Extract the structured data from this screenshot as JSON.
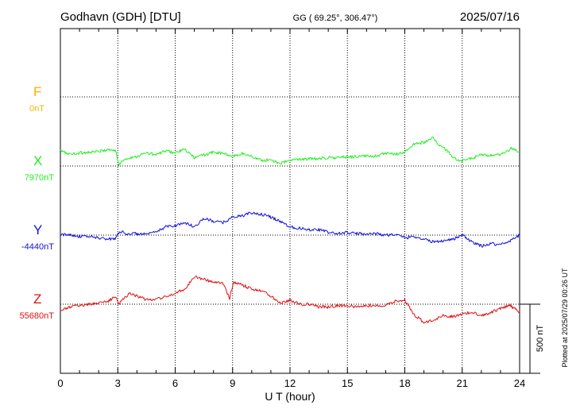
{
  "header": {
    "station": "Godhavn (GDH)  [DTU]",
    "coords": "GG ( 69.25°, 306.47°)",
    "date": "2025/07/16"
  },
  "footer": {
    "plotted": "Plotted at 2025/07/29 00:26 UT"
  },
  "chart_data": {
    "type": "line",
    "xlabel": "U T (hour)",
    "xlim": [
      0,
      24
    ],
    "xticks": [
      "0",
      "3",
      "6",
      "9",
      "12",
      "15",
      "18",
      "21",
      "24"
    ],
    "scale_bar": {
      "label": "500 nT",
      "value_nT": 500
    },
    "colors": {
      "F": "#f0b400",
      "X": "#22ee22",
      "Y": "#1010dd",
      "Z": "#e01010"
    },
    "series": [
      {
        "name": "F",
        "baseline_label": "0nT",
        "baseline_nT": 0,
        "x": [],
        "values": []
      },
      {
        "name": "X",
        "baseline_label": "7970nT",
        "baseline_nT": 7970,
        "x": [
          0,
          0.5,
          1,
          1.5,
          2,
          2.5,
          2.9,
          3.05,
          3.3,
          3.6,
          4,
          4.5,
          5,
          5.5,
          6,
          6.5,
          7,
          7.5,
          8,
          8.5,
          9,
          9.5,
          10,
          10.5,
          11,
          11.5,
          12,
          12.5,
          13,
          13.5,
          14,
          14.5,
          15,
          15.5,
          16,
          16.5,
          17,
          17.5,
          18,
          18.5,
          19,
          19.5,
          19.8,
          20.2,
          20.6,
          21,
          21.5,
          22,
          22.5,
          23,
          23.3,
          23.6,
          24
        ],
        "values": [
          110,
          85,
          95,
          100,
          105,
          120,
          110,
          5,
          45,
          60,
          70,
          95,
          80,
          110,
          95,
          120,
          60,
          80,
          100,
          90,
          70,
          90,
          70,
          40,
          45,
          20,
          40,
          50,
          50,
          55,
          60,
          60,
          65,
          70,
          70,
          75,
          90,
          85,
          100,
          160,
          170,
          205,
          150,
          110,
          55,
          35,
          55,
          80,
          75,
          80,
          100,
          130,
          100
        ]
      },
      {
        "name": "Y",
        "baseline_label": "-4440nT",
        "baseline_nT": -4440,
        "x": [
          0,
          0.5,
          1,
          1.5,
          2,
          2.5,
          2.9,
          3.1,
          3.4,
          4,
          4.5,
          5,
          5.5,
          6,
          6.5,
          7,
          7.5,
          8,
          8.5,
          9,
          9.5,
          10,
          10.5,
          11,
          11.5,
          12,
          12.5,
          13,
          13.5,
          14,
          14.5,
          15,
          15.5,
          16,
          16.5,
          17,
          17.5,
          18,
          18.5,
          19,
          19.5,
          20,
          20.5,
          21,
          21.5,
          22,
          22.5,
          23,
          23.5,
          24
        ],
        "values": [
          0,
          5,
          -10,
          -10,
          -20,
          -30,
          -20,
          30,
          10,
          10,
          5,
          20,
          60,
          70,
          90,
          60,
          120,
          100,
          90,
          130,
          140,
          160,
          150,
          130,
          100,
          60,
          50,
          40,
          40,
          20,
          10,
          20,
          10,
          10,
          10,
          0,
          5,
          -20,
          -10,
          -30,
          -50,
          -40,
          -30,
          0,
          -50,
          -80,
          -60,
          -70,
          -40,
          0
        ]
      },
      {
        "name": "Z",
        "baseline_label": "55680nT",
        "baseline_nT": 55680,
        "x": [
          0,
          0.5,
          1,
          1.5,
          2,
          2.5,
          2.9,
          3.05,
          3.3,
          3.6,
          4,
          4.5,
          5,
          5.5,
          6,
          6.5,
          7,
          7.5,
          8,
          8.5,
          8.85,
          9.05,
          9.5,
          10,
          10.5,
          11,
          11.5,
          12,
          12.5,
          13,
          13.5,
          14,
          14.5,
          15,
          15.5,
          16,
          16.5,
          17,
          17.5,
          18,
          18.5,
          19,
          19.5,
          20,
          20.5,
          21,
          21.5,
          22,
          22.5,
          23,
          23.5,
          24
        ],
        "values": [
          -50,
          -20,
          -10,
          0,
          10,
          20,
          60,
          0,
          40,
          80,
          60,
          30,
          40,
          50,
          80,
          110,
          200,
          180,
          160,
          150,
          40,
          160,
          140,
          110,
          100,
          60,
          10,
          30,
          0,
          0,
          -20,
          -20,
          -10,
          -10,
          -20,
          -10,
          -10,
          -10,
          20,
          30,
          -80,
          -130,
          -120,
          -80,
          -90,
          -70,
          -60,
          -80,
          -60,
          -30,
          -10,
          -60
        ]
      }
    ]
  }
}
